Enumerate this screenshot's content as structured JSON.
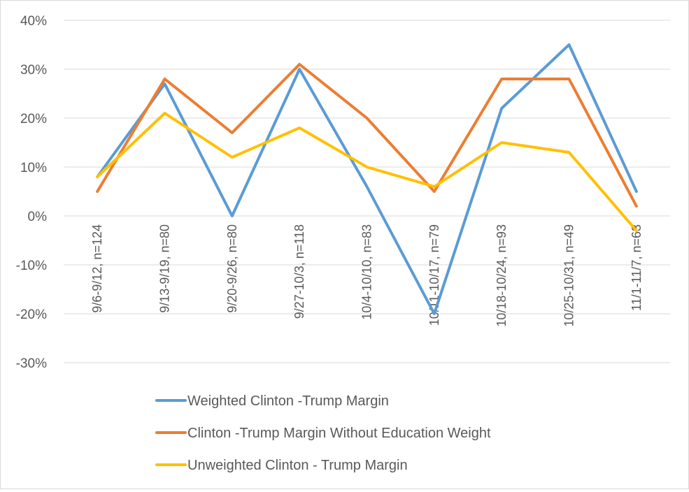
{
  "chart_data": {
    "type": "line",
    "categories": [
      "9/6-9/12, n=124",
      "9/13-9/19, n=80",
      "9/20-9/26, n=80",
      "9/27-10/3, n=118",
      "10/4-10/10, n=83",
      "10/11-10/17, n=79",
      "10/18-10/24, n=93",
      "10/25-10/31, n=49",
      "11/1-11/7, n=63"
    ],
    "y_ticks": [
      "40%",
      "30%",
      "20%",
      "10%",
      "0%",
      "-10%",
      "-20%",
      "-30%"
    ],
    "ylim": [
      -30,
      40
    ],
    "y_unit": "%",
    "grid": true,
    "legend_position": "bottom",
    "series": [
      {
        "name": "Weighted Clinton -Trump Margin",
        "color": "#5b9bd5",
        "values": [
          8,
          27,
          0,
          30,
          6,
          -20,
          22,
          35,
          5
        ]
      },
      {
        "name": "Clinton -Trump Margin Without Education Weight",
        "color": "#ed7d31",
        "values": [
          5,
          28,
          17,
          31,
          20,
          5,
          28,
          28,
          2
        ]
      },
      {
        "name": "Unweighted Clinton - Trump Margin",
        "color": "#ffc000",
        "values": [
          8,
          21,
          12,
          18,
          10,
          6,
          15,
          13,
          -3
        ]
      }
    ]
  }
}
